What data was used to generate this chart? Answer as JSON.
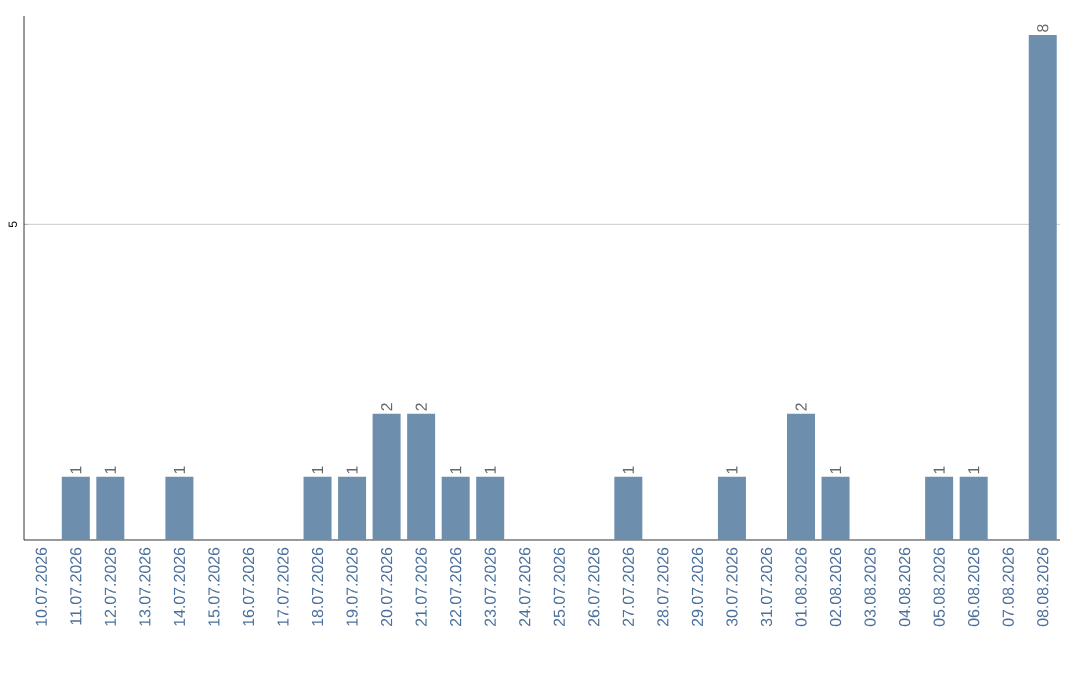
{
  "chart_data": {
    "type": "bar",
    "categories": [
      "10.07.2026",
      "11.07.2026",
      "12.07.2026",
      "13.07.2026",
      "14.07.2026",
      "15.07.2026",
      "16.07.2026",
      "17.07.2026",
      "18.07.2026",
      "19.07.2026",
      "20.07.2026",
      "21.07.2026",
      "22.07.2026",
      "23.07.2026",
      "24.07.2026",
      "25.07.2026",
      "26.07.2026",
      "27.07.2026",
      "28.07.2026",
      "29.07.2026",
      "30.07.2026",
      "31.07.2026",
      "01.08.2026",
      "02.08.2026",
      "03.08.2026",
      "04.08.2026",
      "05.08.2026",
      "06.08.2026",
      "07.08.2026",
      "08.08.2026"
    ],
    "values": [
      0,
      1,
      1,
      0,
      1,
      0,
      0,
      0,
      1,
      1,
      2,
      2,
      1,
      1,
      0,
      0,
      0,
      1,
      0,
      0,
      1,
      0,
      2,
      1,
      0,
      0,
      1,
      1,
      0,
      8
    ],
    "value_labels": [
      null,
      "1",
      "1",
      null,
      "1",
      null,
      null,
      null,
      "1",
      "1",
      "2",
      "2",
      "1",
      "1",
      null,
      null,
      null,
      "1",
      null,
      null,
      "1",
      null,
      "2",
      "1",
      null,
      null,
      "1",
      "1",
      null,
      "8"
    ],
    "color": "#6d8fad",
    "ylim": [
      0,
      8.3
    ],
    "yticks": [
      5
    ],
    "grid": "y"
  }
}
